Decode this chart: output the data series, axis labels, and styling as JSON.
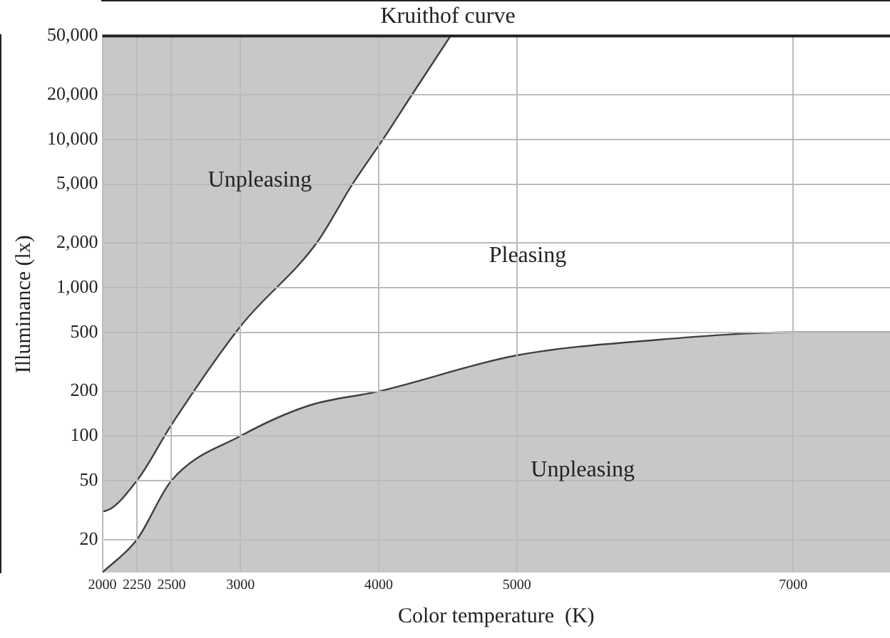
{
  "chart_data": {
    "type": "area",
    "title": "Kruithof curve",
    "xlabel": "Color temperature  (K)",
    "ylabel": "Illuminance (lx)",
    "log": "y",
    "grid": true,
    "legend": false,
    "marker": "none",
    "xlim": [
      2000,
      7700
    ],
    "xticks": [
      2000,
      2250,
      2500,
      3000,
      4000,
      5000,
      7000
    ],
    "ylim": [
      12,
      50000
    ],
    "yticks": [
      20,
      50,
      100,
      200,
      500,
      {
        "value": 1000,
        "label": "1,000"
      },
      {
        "value": 2000,
        "label": "2,000"
      },
      {
        "value": 5000,
        "label": "5,000"
      },
      {
        "value": 10000,
        "label": "10,000"
      },
      {
        "value": 20000,
        "label": "20,000"
      },
      {
        "value": 50000,
        "label": "50,000"
      }
    ],
    "series": [
      {
        "color": "#c8c8c8",
        "x": [
          2000,
          2000,
          2250,
          2500,
          3000,
          3550,
          3810,
          4030,
          4240,
          4520
        ],
        "values": [
          50000,
          31,
          50,
          119,
          550,
          2000,
          5000,
          10000,
          20000,
          50000
        ]
      },
      {
        "color": "#c8c8c8",
        "x": [
          2000,
          2250,
          2500,
          3000,
          3500,
          4000,
          5000,
          6000,
          7000,
          7700
        ],
        "values": [
          12,
          20,
          50,
          100,
          161,
          200,
          350,
          444,
          500,
          500
        ]
      }
    ],
    "annotations": [
      "Unpleasing",
      "Pleasing",
      "Unpleasing"
    ]
  }
}
